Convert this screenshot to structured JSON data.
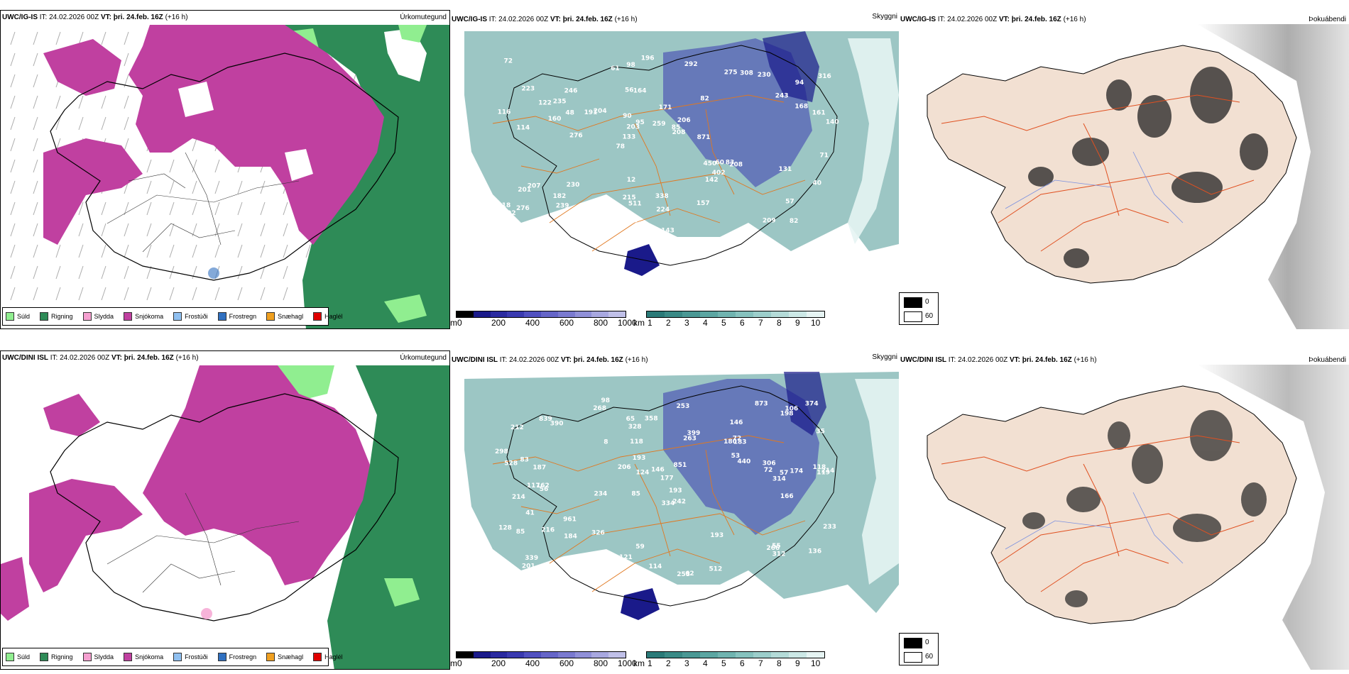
{
  "rows": [
    {
      "model": "UWC/IG-IS",
      "it_label": "IT:",
      "it_value": "24.02.2026 00Z",
      "vt_label": "VT:",
      "vt_value": "þri. 24.feb. 16Z",
      "lead": "(+16 h)"
    },
    {
      "model": "UWC/DINI ISL",
      "it_label": "IT:",
      "it_value": "24.02.2026 00Z",
      "vt_label": "VT:",
      "vt_value": "þri. 24.feb. 16Z",
      "lead": "(+16 h)"
    }
  ],
  "panel_types": {
    "precip": "Úrkomutegund",
    "cloud": "Skyggni",
    "fog": "Þokuábendi"
  },
  "precip_legend": [
    {
      "label": "Súld",
      "color": "#90ee90"
    },
    {
      "label": "Rigning",
      "color": "#2e8b57"
    },
    {
      "label": "Slydda",
      "color": "#f5a0d0"
    },
    {
      "label": "Snjókoma",
      "color": "#c040a0"
    },
    {
      "label": "Frostúði",
      "color": "#90c0f0"
    },
    {
      "label": "Frostregn",
      "color": "#3070c0"
    },
    {
      "label": "Snæhagl",
      "color": "#f0a020"
    },
    {
      "label": "Haglél",
      "color": "#e00000"
    }
  ],
  "cloudbase_scale": {
    "unit": "m",
    "ticks": [
      "0",
      "200",
      "400",
      "600",
      "800",
      "1000"
    ],
    "colors": [
      "#000000",
      "#1a1a8a",
      "#2a2aa0",
      "#3a3ab0",
      "#5050c0",
      "#6565c8",
      "#7a7ad0",
      "#9090d8",
      "#a8a8e0",
      "#c0c0e8"
    ]
  },
  "visibility_scale": {
    "unit": "km",
    "ticks": [
      "1",
      "2",
      "3",
      "4",
      "5",
      "6",
      "7",
      "8",
      "9",
      "10"
    ],
    "colors": [
      "#2a7a78",
      "#3a8a86",
      "#4a9894",
      "#5ca6a2",
      "#70b4b0",
      "#86c2be",
      "#9ccecb",
      "#b4dbd8",
      "#cce8e6",
      "#e6f4f3"
    ]
  },
  "fog_legend": {
    "items": [
      {
        "label": "0",
        "color": "#000000"
      },
      {
        "label": "60",
        "color": "#ffffff"
      }
    ]
  },
  "cloud_labels_top": [
    "82",
    "114",
    "94",
    "78",
    "82",
    "64",
    "56",
    "171",
    "207",
    "204",
    "192",
    "239",
    "164",
    "206",
    "208",
    "223",
    "98",
    "140",
    "450",
    "168",
    "133",
    "215",
    "203",
    "246",
    "275",
    "230",
    "209",
    "57",
    "83",
    "143",
    "191",
    "160",
    "142",
    "266",
    "161",
    "85",
    "213",
    "511",
    "208",
    "201",
    "243",
    "316",
    "402",
    "157",
    "182",
    "195",
    "74",
    "338",
    "230",
    "196",
    "276",
    "116",
    "235",
    "308",
    "280",
    "292",
    "61",
    "95",
    "40",
    "12",
    "36",
    "60",
    "48",
    "18",
    "72",
    "122",
    "71",
    "90",
    "224",
    "259",
    "276",
    "871",
    "131",
    "50"
  ],
  "cloud_labels_bottom": [
    "98",
    "146",
    "119",
    "85",
    "242",
    "162",
    "212",
    "180",
    "214",
    "263",
    "177",
    "201",
    "268",
    "234",
    "253",
    "62",
    "59",
    "873",
    "440",
    "961",
    "187",
    "117",
    "214",
    "174",
    "128",
    "83",
    "124",
    "72",
    "55",
    "85",
    "266",
    "399",
    "216",
    "206",
    "193",
    "233",
    "306",
    "121",
    "374",
    "358",
    "339",
    "289",
    "512",
    "839",
    "114",
    "183",
    "312",
    "72",
    "298",
    "193",
    "328",
    "314",
    "851",
    "198",
    "253",
    "184",
    "193",
    "146",
    "106",
    "118",
    "136",
    "166",
    "390",
    "326",
    "334",
    "528",
    "57",
    "56",
    "8",
    "35",
    "41",
    "65",
    "118",
    "53"
  ]
}
